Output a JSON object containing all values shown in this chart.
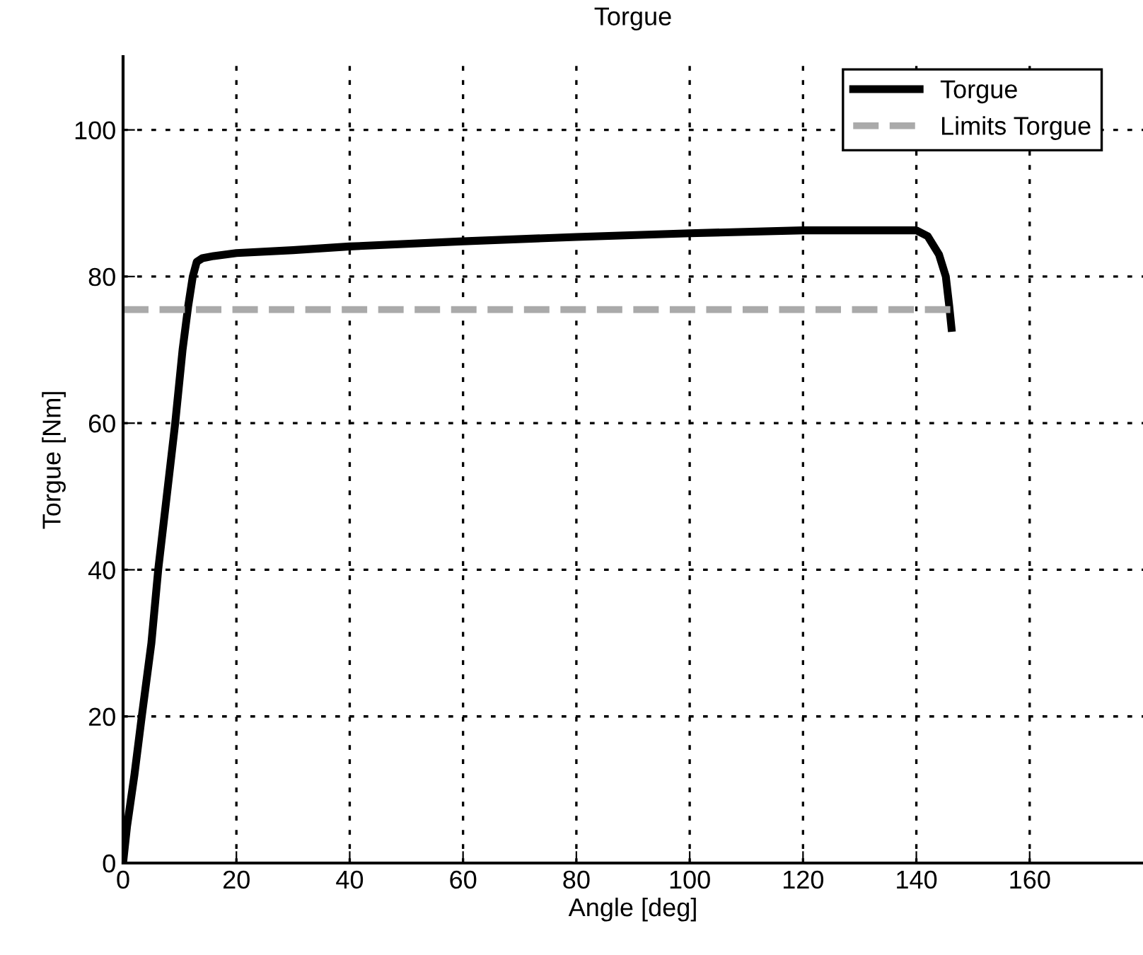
{
  "chart_data": {
    "type": "line",
    "title": "Torgue",
    "xlabel": "Angle [deg]",
    "ylabel": "Torgue [Nm]",
    "xlim": [
      0,
      180
    ],
    "ylim": [
      0,
      110
    ],
    "xticks": [
      0,
      20,
      40,
      60,
      80,
      100,
      120,
      140,
      160
    ],
    "yticks": [
      0,
      20,
      40,
      60,
      80,
      100
    ],
    "grid": true,
    "legend": "top right",
    "series": [
      {
        "name": "Torgue",
        "color": "#000000",
        "line_style": "solid",
        "x": [
          0,
          0.7,
          2,
          3.3,
          5,
          6.2,
          7.7,
          9.2,
          10.5,
          11.5,
          12.3,
          13,
          14,
          16,
          20,
          30,
          40,
          60,
          80,
          100,
          120,
          130,
          140,
          142,
          144,
          145.2,
          145.8,
          146.2
        ],
        "values": [
          0,
          5,
          12,
          20,
          30,
          40,
          50,
          60,
          70,
          76,
          80,
          82,
          82.5,
          82.8,
          83.2,
          83.6,
          84.1,
          84.8,
          85.4,
          85.9,
          86.3,
          86.3,
          86.3,
          85.5,
          83,
          80,
          76,
          73
        ]
      },
      {
        "name": "Limits Torgue",
        "color": "#aaaaaa",
        "line_style": "dashed",
        "x": [
          0,
          146
        ],
        "values": [
          75.5,
          75.5
        ]
      }
    ]
  }
}
